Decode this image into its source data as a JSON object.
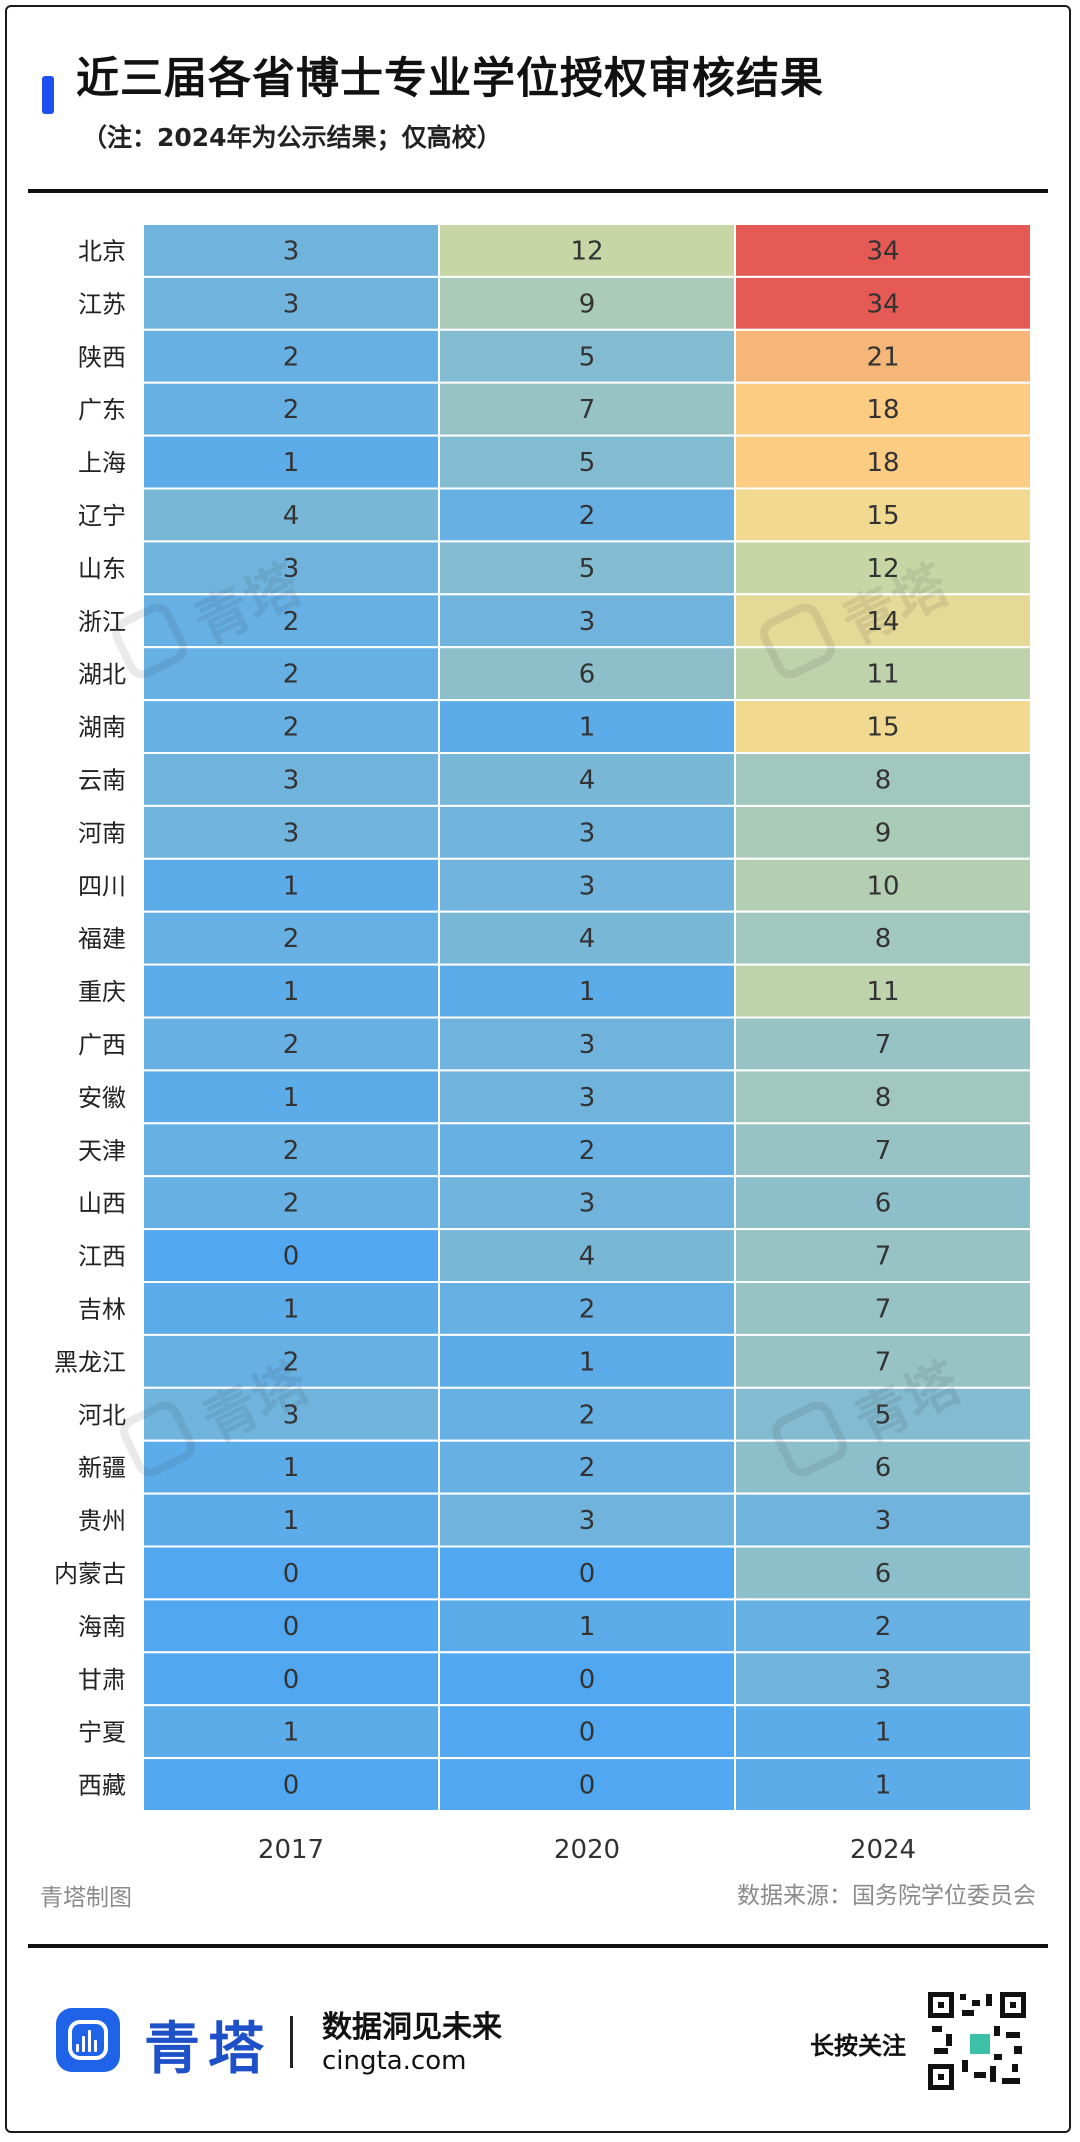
{
  "header": {
    "title": "近三届各省博士专业学位授权审核结果",
    "subtitle": "（注：2024年为公示结果；仅高校）"
  },
  "chart_data": {
    "type": "heatmap",
    "columns": [
      "2017",
      "2020",
      "2024"
    ],
    "rows": [
      {
        "province": "北京",
        "values": [
          3,
          12,
          34
        ]
      },
      {
        "province": "江苏",
        "values": [
          3,
          9,
          34
        ]
      },
      {
        "province": "陕西",
        "values": [
          2,
          5,
          21
        ]
      },
      {
        "province": "广东",
        "values": [
          2,
          7,
          18
        ]
      },
      {
        "province": "上海",
        "values": [
          1,
          5,
          18
        ]
      },
      {
        "province": "辽宁",
        "values": [
          4,
          2,
          15
        ]
      },
      {
        "province": "山东",
        "values": [
          3,
          5,
          12
        ]
      },
      {
        "province": "浙江",
        "values": [
          2,
          3,
          14
        ]
      },
      {
        "province": "湖北",
        "values": [
          2,
          6,
          11
        ]
      },
      {
        "province": "湖南",
        "values": [
          2,
          1,
          15
        ]
      },
      {
        "province": "云南",
        "values": [
          3,
          4,
          8
        ]
      },
      {
        "province": "河南",
        "values": [
          3,
          3,
          9
        ]
      },
      {
        "province": "四川",
        "values": [
          1,
          3,
          10
        ]
      },
      {
        "province": "福建",
        "values": [
          2,
          4,
          8
        ]
      },
      {
        "province": "重庆",
        "values": [
          1,
          1,
          11
        ]
      },
      {
        "province": "广西",
        "values": [
          2,
          3,
          7
        ]
      },
      {
        "province": "安徽",
        "values": [
          1,
          3,
          8
        ]
      },
      {
        "province": "天津",
        "values": [
          2,
          2,
          7
        ]
      },
      {
        "province": "山西",
        "values": [
          2,
          3,
          6
        ]
      },
      {
        "province": "江西",
        "values": [
          0,
          4,
          7
        ]
      },
      {
        "province": "吉林",
        "values": [
          1,
          2,
          7
        ]
      },
      {
        "province": "黑龙江",
        "values": [
          2,
          1,
          7
        ]
      },
      {
        "province": "河北",
        "values": [
          3,
          2,
          5
        ]
      },
      {
        "province": "新疆",
        "values": [
          1,
          2,
          6
        ]
      },
      {
        "province": "贵州",
        "values": [
          1,
          3,
          3
        ]
      },
      {
        "province": "内蒙古",
        "values": [
          0,
          0,
          6
        ]
      },
      {
        "province": "海南",
        "values": [
          0,
          1,
          2
        ]
      },
      {
        "province": "甘肃",
        "values": [
          0,
          0,
          3
        ]
      },
      {
        "province": "宁夏",
        "values": [
          1,
          0,
          1
        ]
      },
      {
        "province": "西藏",
        "values": [
          0,
          0,
          1
        ]
      }
    ],
    "color_scale": {
      "low": "#52a8f0",
      "mid": "#c8d6a6",
      "high_yellow": "#ffdb88",
      "high_orange": "#f5b678",
      "max": "#e55a55"
    }
  },
  "footer": {
    "maker": "青塔制图",
    "source": "数据来源：国务院学位委员会",
    "brand_name": "青塔",
    "slogan": "数据洞见未来",
    "website": "cingta.com",
    "follow": "长按关注",
    "watermark_text": "青塔"
  }
}
